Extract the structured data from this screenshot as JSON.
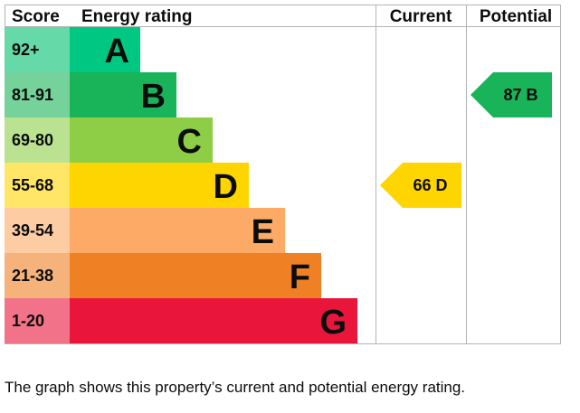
{
  "chart_data": {
    "type": "bar",
    "headers": {
      "score": "Score",
      "rating": "Energy rating",
      "current": "Current",
      "potential": "Potential"
    },
    "bands": [
      {
        "score": "92+",
        "letter": "A",
        "color": "#00c781",
        "score_bg": "#66d9a8"
      },
      {
        "score": "81-91",
        "letter": "B",
        "color": "#19b459",
        "score_bg": "#75d29b"
      },
      {
        "score": "69-80",
        "letter": "C",
        "color": "#8dce46",
        "score_bg": "#bbe290"
      },
      {
        "score": "55-68",
        "letter": "D",
        "color": "#ffd500",
        "score_bg": "#ffe666"
      },
      {
        "score": "39-54",
        "letter": "E",
        "color": "#fcaa65",
        "score_bg": "#fdcca3"
      },
      {
        "score": "21-38",
        "letter": "F",
        "color": "#ef8023",
        "score_bg": "#f5b37b"
      },
      {
        "score": "1-20",
        "letter": "G",
        "color": "#e9153b",
        "score_bg": "#f27389"
      }
    ],
    "current": {
      "value": 66,
      "band": "D",
      "label": "66  D",
      "color": "#ffd500",
      "text_color": "#0b0c0c"
    },
    "potential": {
      "value": 87,
      "band": "B",
      "label": "87  B",
      "color": "#19b459",
      "text_color": "#0b0c0c"
    }
  },
  "caption": "The graph shows this property’s current and potential energy rating."
}
